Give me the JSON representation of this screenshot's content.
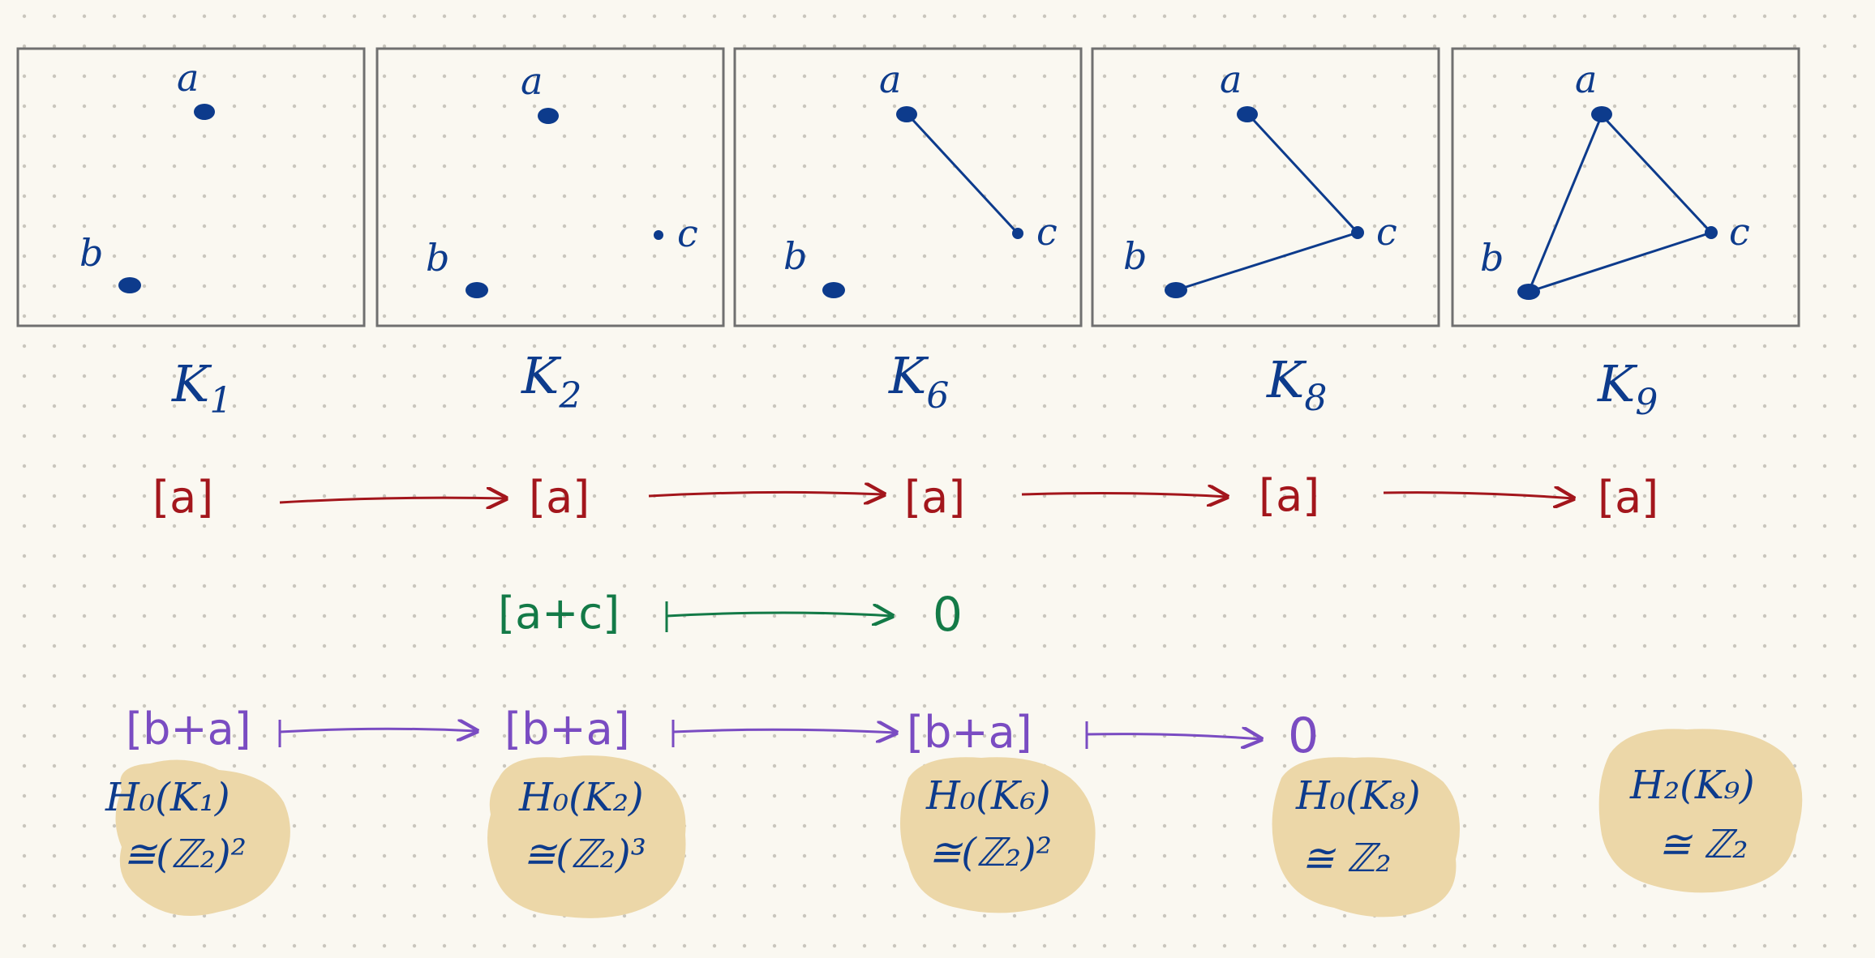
{
  "colors": {
    "paper": "#faf8f1",
    "grid_dot": "#c9c6bd",
    "frame": "#707070",
    "ink_blue": "#0d3b8c",
    "ink_red": "#a3161c",
    "ink_green": "#137a47",
    "ink_purple": "#7a4cc2",
    "highlight": "#ecd7a8"
  },
  "panels": [
    {
      "label_main": "K",
      "label_sub": "1"
    },
    {
      "label_main": "K",
      "label_sub": "2"
    },
    {
      "label_main": "K",
      "label_sub": "6"
    },
    {
      "label_main": "K",
      "label_sub": "8"
    },
    {
      "label_main": "K",
      "label_sub": "9"
    }
  ],
  "vertex_labels": {
    "a": "a",
    "b": "b",
    "c": "c"
  },
  "red_chain": {
    "terms": [
      "[a]",
      "[a]",
      "[a]",
      "[a]",
      "[a]"
    ]
  },
  "green_chain": {
    "from": "[a+c]",
    "to": "0"
  },
  "purple_chain": {
    "terms": [
      "[b+a]",
      "[b+a]",
      "[b+a]",
      "0"
    ]
  },
  "homology": [
    {
      "line1": "H₀(K₁)",
      "line2": "≅(ℤ₂)²"
    },
    {
      "line1": "H₀(K₂)",
      "line2": "≅(ℤ₂)³"
    },
    {
      "line1": "H₀(K₆)",
      "line2": "≅(ℤ₂)²"
    },
    {
      "line1": "H₀(K₈)",
      "line2": "≅ ℤ₂"
    },
    {
      "line1": "H₂(K₉)",
      "line2": "≅ ℤ₂"
    }
  ]
}
